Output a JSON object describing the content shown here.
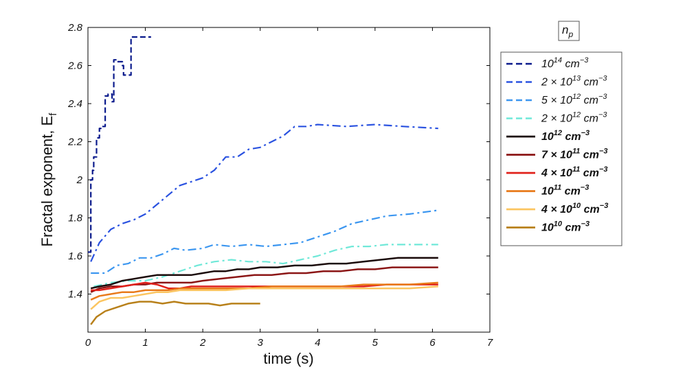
{
  "chart_data": {
    "type": "line",
    "xlabel": "time (s)",
    "ylabel": "Fractal exponent, E",
    "ylabel_sub": "f",
    "xlim": [
      0,
      7
    ],
    "ylim": [
      1.2,
      2.8
    ],
    "xticks": [
      "0",
      "1",
      "2",
      "3",
      "4",
      "5",
      "6",
      "7"
    ],
    "yticks": [
      "1.4",
      "1.6",
      "1.8",
      "2",
      "2.2",
      "2.4",
      "2.6",
      "2.8"
    ],
    "grid": false,
    "legend_title": "n",
    "legend_title_sub": "p",
    "legend_placement": "outside-right",
    "series": [
      {
        "name": "10^14 cm^-3",
        "label": {
          "base": "",
          "mant": "10",
          "exp": "14",
          "unit": " cm",
          "uexp": "−3"
        },
        "color": "#0a1a8c",
        "style": "dash-step",
        "bold": false,
        "x": [
          0.0,
          0.05,
          0.08,
          0.1,
          0.15,
          0.2,
          0.25,
          0.3,
          0.35,
          0.4,
          0.42,
          0.45,
          0.5,
          0.55,
          0.6,
          0.62,
          0.7,
          0.75,
          0.8,
          0.9,
          1.1
        ],
        "y": [
          1.62,
          2.0,
          2.05,
          2.12,
          2.22,
          2.27,
          2.28,
          2.44,
          2.45,
          2.45,
          2.41,
          2.63,
          2.62,
          2.62,
          2.6,
          2.55,
          2.55,
          2.75,
          2.75,
          2.75,
          2.75
        ]
      },
      {
        "name": "2×10^13 cm^-3",
        "label": {
          "base": "2 × ",
          "mant": "10",
          "exp": "13",
          "unit": " cm",
          "uexp": "−3"
        },
        "color": "#2a52e0",
        "style": "dashdot",
        "bold": false,
        "x": [
          0.05,
          0.2,
          0.4,
          0.6,
          0.8,
          1.0,
          1.2,
          1.4,
          1.6,
          1.8,
          2.0,
          2.2,
          2.4,
          2.6,
          2.8,
          3.0,
          3.2,
          3.4,
          3.6,
          3.8,
          4.0,
          4.5,
          5.0,
          5.5,
          6.1
        ],
        "y": [
          1.57,
          1.67,
          1.74,
          1.77,
          1.79,
          1.82,
          1.87,
          1.92,
          1.97,
          1.99,
          2.01,
          2.05,
          2.12,
          2.12,
          2.16,
          2.17,
          2.2,
          2.23,
          2.28,
          2.28,
          2.29,
          2.28,
          2.29,
          2.28,
          2.27
        ]
      },
      {
        "name": "5×10^12 cm^-3",
        "label": {
          "base": "5 × ",
          "mant": "10",
          "exp": "12",
          "unit": " cm",
          "uexp": "−3"
        },
        "color": "#3b96f0",
        "style": "dashdot",
        "bold": false,
        "x": [
          0.05,
          0.3,
          0.5,
          0.7,
          0.9,
          1.1,
          1.3,
          1.5,
          1.7,
          2.0,
          2.2,
          2.5,
          2.8,
          3.1,
          3.4,
          3.7,
          4.0,
          4.3,
          4.6,
          4.9,
          5.2,
          5.6,
          6.1
        ],
        "y": [
          1.51,
          1.51,
          1.55,
          1.56,
          1.59,
          1.59,
          1.61,
          1.64,
          1.63,
          1.64,
          1.66,
          1.65,
          1.66,
          1.65,
          1.66,
          1.67,
          1.7,
          1.73,
          1.77,
          1.79,
          1.81,
          1.82,
          1.84
        ]
      },
      {
        "name": "2×10^12 cm^-3",
        "label": {
          "base": "2 × ",
          "mant": "10",
          "exp": "12",
          "unit": " cm",
          "uexp": "−3"
        },
        "color": "#6fe8d8",
        "style": "dashdot",
        "bold": false,
        "x": [
          0.1,
          0.4,
          0.7,
          1.0,
          1.3,
          1.6,
          1.9,
          2.2,
          2.5,
          2.8,
          3.1,
          3.4,
          3.7,
          4.0,
          4.3,
          4.6,
          4.9,
          5.2,
          5.5,
          6.1
        ],
        "y": [
          1.44,
          1.46,
          1.47,
          1.47,
          1.49,
          1.52,
          1.55,
          1.57,
          1.58,
          1.57,
          1.57,
          1.56,
          1.58,
          1.6,
          1.63,
          1.65,
          1.65,
          1.66,
          1.66,
          1.66
        ]
      },
      {
        "name": "10^12 cm^-3",
        "label": {
          "base": "",
          "mant": "10",
          "exp": "12",
          "unit": " cm",
          "uexp": "−3"
        },
        "color": "#1a0a0a",
        "style": "solid",
        "bold": true,
        "x": [
          0.05,
          0.2,
          0.4,
          0.6,
          0.8,
          1.0,
          1.2,
          1.4,
          1.6,
          1.8,
          2.0,
          2.2,
          2.4,
          2.6,
          2.8,
          3.0,
          3.3,
          3.6,
          3.9,
          4.2,
          4.5,
          4.8,
          5.1,
          5.4,
          5.7,
          6.1
        ],
        "y": [
          1.43,
          1.44,
          1.45,
          1.47,
          1.48,
          1.49,
          1.5,
          1.5,
          1.5,
          1.5,
          1.51,
          1.52,
          1.52,
          1.53,
          1.53,
          1.54,
          1.54,
          1.55,
          1.55,
          1.56,
          1.56,
          1.57,
          1.58,
          1.59,
          1.59,
          1.59
        ]
      },
      {
        "name": "7×10^11 cm^-3",
        "label": {
          "base": "7 × ",
          "mant": "10",
          "exp": "11",
          "unit": " cm",
          "uexp": "−3"
        },
        "color": "#8b1515",
        "style": "solid",
        "bold": true,
        "x": [
          0.05,
          0.2,
          0.4,
          0.6,
          0.8,
          1.0,
          1.2,
          1.4,
          1.6,
          1.8,
          2.0,
          2.3,
          2.6,
          2.9,
          3.2,
          3.5,
          3.8,
          4.1,
          4.4,
          4.7,
          5.0,
          5.3,
          5.6,
          6.1
        ],
        "y": [
          1.41,
          1.43,
          1.44,
          1.44,
          1.45,
          1.45,
          1.46,
          1.46,
          1.46,
          1.46,
          1.47,
          1.48,
          1.49,
          1.5,
          1.5,
          1.51,
          1.51,
          1.52,
          1.52,
          1.53,
          1.53,
          1.54,
          1.54,
          1.54
        ]
      },
      {
        "name": "4×10^11 cm^-3",
        "label": {
          "base": "4 × ",
          "mant": "10",
          "exp": "11",
          "unit": " cm",
          "uexp": "−3"
        },
        "color": "#e0201a",
        "style": "solid",
        "bold": true,
        "x": [
          0.05,
          0.2,
          0.4,
          0.6,
          0.8,
          1.0,
          1.2,
          1.4,
          1.6,
          1.8,
          2.0,
          2.4,
          2.8,
          3.2,
          3.6,
          4.0,
          4.4,
          4.8,
          5.2,
          5.6,
          6.1
        ],
        "y": [
          1.42,
          1.42,
          1.43,
          1.44,
          1.45,
          1.46,
          1.45,
          1.43,
          1.43,
          1.44,
          1.44,
          1.44,
          1.44,
          1.44,
          1.44,
          1.44,
          1.44,
          1.44,
          1.45,
          1.45,
          1.45
        ]
      },
      {
        "name": "10^11 cm^-3",
        "label": {
          "base": "",
          "mant": "10",
          "exp": "11",
          "unit": " cm",
          "uexp": "−3"
        },
        "color": "#e87a1a",
        "style": "solid",
        "bold": true,
        "x": [
          0.05,
          0.2,
          0.4,
          0.6,
          0.8,
          1.0,
          1.2,
          1.4,
          1.6,
          1.8,
          2.0,
          2.4,
          2.8,
          3.2,
          3.6,
          4.0,
          4.4,
          4.8,
          5.2,
          5.6,
          6.1
        ],
        "y": [
          1.37,
          1.39,
          1.4,
          1.41,
          1.41,
          1.42,
          1.42,
          1.42,
          1.43,
          1.43,
          1.43,
          1.43,
          1.43,
          1.44,
          1.44,
          1.44,
          1.44,
          1.45,
          1.45,
          1.45,
          1.46
        ]
      },
      {
        "name": "4×10^10 cm^-3",
        "label": {
          "base": "4 × ",
          "mant": "10",
          "exp": "10",
          "unit": " cm",
          "uexp": "−3"
        },
        "color": "#fbc560",
        "style": "solid",
        "bold": true,
        "x": [
          0.05,
          0.2,
          0.4,
          0.6,
          0.8,
          1.0,
          1.2,
          1.4,
          1.6,
          1.8,
          2.0,
          2.4,
          2.8,
          3.2,
          3.6,
          4.0,
          4.4,
          4.8,
          5.2,
          5.6,
          6.1
        ],
        "y": [
          1.32,
          1.36,
          1.38,
          1.38,
          1.39,
          1.4,
          1.41,
          1.41,
          1.42,
          1.42,
          1.42,
          1.42,
          1.43,
          1.43,
          1.43,
          1.43,
          1.43,
          1.43,
          1.43,
          1.43,
          1.44
        ]
      },
      {
        "name": "10^10 cm^-3",
        "label": {
          "base": "",
          "mant": "10",
          "exp": "10",
          "unit": " cm",
          "uexp": "−3"
        },
        "color": "#b8801a",
        "style": "solid",
        "bold": true,
        "x": [
          0.05,
          0.15,
          0.3,
          0.5,
          0.7,
          0.9,
          1.1,
          1.3,
          1.5,
          1.7,
          1.9,
          2.1,
          2.3,
          2.5,
          2.7,
          2.9,
          3.0
        ],
        "y": [
          1.24,
          1.28,
          1.31,
          1.33,
          1.35,
          1.36,
          1.36,
          1.35,
          1.36,
          1.35,
          1.35,
          1.35,
          1.34,
          1.35,
          1.35,
          1.35,
          1.35
        ]
      }
    ]
  }
}
